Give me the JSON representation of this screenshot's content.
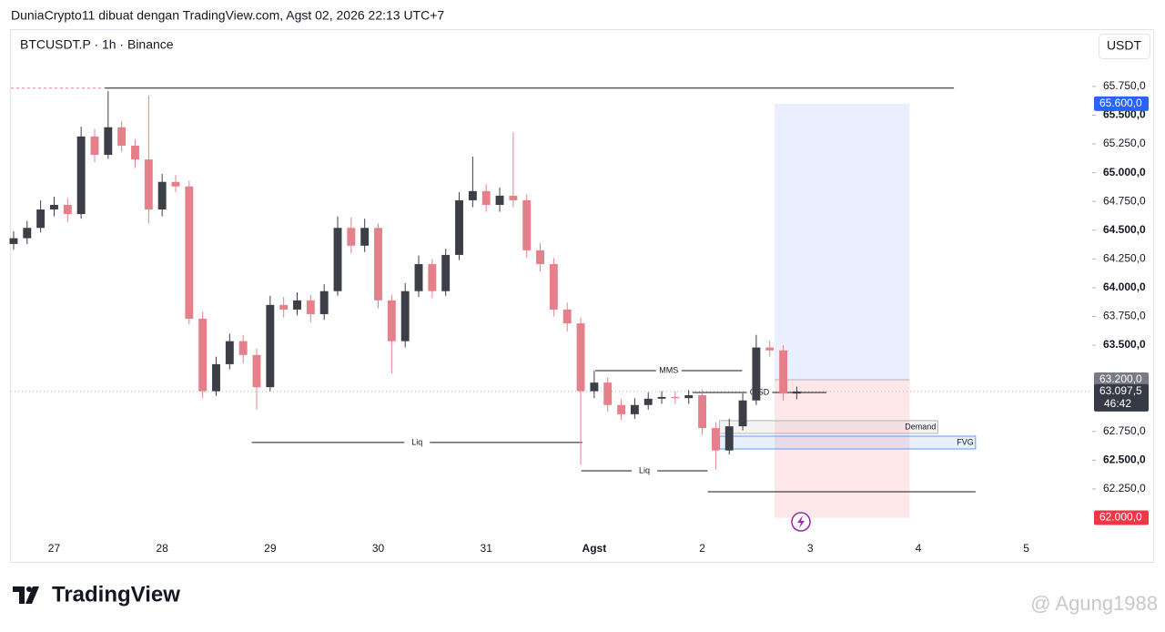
{
  "header": {
    "text": "DuniaCrypto11 dibuat dengan TradingView.com, Agst 02, 2026 22:13 UTC+7"
  },
  "chart_data": {
    "type": "candlestick",
    "title": "BTCUSDT.P · 1h · Binance",
    "currency": "USDT",
    "up_color": "#3c3f47",
    "down_color": "#e5808b",
    "xlim": [
      26.6,
      36.61
    ],
    "ylim": [
      61830,
      66240
    ],
    "xticks": [
      27,
      28,
      29,
      30,
      31,
      {
        "value": 32,
        "label": "Agst"
      },
      {
        "value": 33,
        "label": "2"
      },
      {
        "value": 34,
        "label": "3"
      },
      {
        "value": 35,
        "label": "4"
      },
      {
        "value": 36,
        "label": "5"
      }
    ],
    "yticks": [
      {
        "value": 62250,
        "label": "62.250,0"
      },
      {
        "value": 62500,
        "label": "62.500,0"
      },
      {
        "value": 62750,
        "label": "62.750,0"
      },
      {
        "value": 63500,
        "label": "63.500,0"
      },
      {
        "value": 63750,
        "label": "63.750,0"
      },
      {
        "value": 64000,
        "label": "64.000,0"
      },
      {
        "value": 64250,
        "label": "64.250,0"
      },
      {
        "value": 64500,
        "label": "64.500,0"
      },
      {
        "value": 64750,
        "label": "64.750,0"
      },
      {
        "value": 65000,
        "label": "65.000,0"
      },
      {
        "value": 65250,
        "label": "65.250,0"
      },
      {
        "value": 65500,
        "label": "65.500,0"
      },
      {
        "value": 65750,
        "label": "65.750,0"
      }
    ],
    "x": [
      26.625,
      26.75,
      26.875,
      27,
      27.125,
      27.25,
      27.375,
      27.5,
      27.625,
      27.75,
      27.875,
      28,
      28.125,
      28.25,
      28.375,
      28.5,
      28.625,
      28.75,
      28.875,
      29,
      29.125,
      29.25,
      29.375,
      29.5,
      29.625,
      29.75,
      29.875,
      30,
      30.125,
      30.25,
      30.375,
      30.5,
      30.625,
      30.75,
      30.875,
      31,
      31.125,
      31.25,
      31.375,
      31.5,
      31.625,
      31.75,
      31.875,
      32,
      32.125,
      32.25,
      32.375,
      32.5,
      32.625,
      32.75,
      32.875,
      33,
      33.125,
      33.25,
      33.375,
      33.5,
      33.625,
      33.75,
      33.875
    ],
    "open": [
      64380,
      64430,
      64520,
      64680,
      64720,
      64640,
      65315,
      65155,
      65395,
      65235,
      65115,
      64680,
      64920,
      64880,
      63730,
      63100,
      63335,
      63535,
      63415,
      63135,
      63850,
      63810,
      63890,
      63770,
      63970,
      64520,
      64365,
      64520,
      63890,
      63535,
      63970,
      64205,
      63970,
      64285,
      64760,
      64840,
      64720,
      64800,
      64760,
      64325,
      64205,
      63810,
      63690,
      63100,
      63175,
      62980,
      62900,
      62980,
      63035,
      63050,
      63040,
      63065,
      62780,
      62585,
      62795,
      63020,
      63480,
      63455,
      63080
    ],
    "high": [
      64490,
      64580,
      64760,
      64790,
      64780,
      65400,
      65380,
      65710,
      65450,
      65290,
      65670,
      64990,
      64980,
      64930,
      63790,
      63400,
      63600,
      63590,
      63470,
      63930,
      63920,
      63960,
      63940,
      64030,
      64620,
      64610,
      64600,
      64560,
      63940,
      64040,
      64280,
      64250,
      64340,
      64830,
      65140,
      64900,
      64870,
      65350,
      64810,
      64390,
      64260,
      63870,
      63740,
      63280,
      63220,
      63030,
      63040,
      63090,
      63100,
      63100,
      63110,
      63110,
      62830,
      62860,
      63080,
      63590,
      63540,
      63500,
      63140
    ],
    "low": [
      64330,
      64380,
      64480,
      64620,
      64570,
      64600,
      65090,
      65120,
      65180,
      65040,
      64560,
      64620,
      64830,
      63680,
      63040,
      63060,
      63290,
      63340,
      62940,
      63100,
      63740,
      63760,
      63700,
      63720,
      63930,
      64300,
      64310,
      63820,
      63255,
      63480,
      63920,
      63910,
      63930,
      64240,
      64700,
      64660,
      64660,
      64700,
      64260,
      64140,
      63750,
      63620,
      62460,
      63040,
      62920,
      62850,
      62860,
      62940,
      62990,
      62990,
      62990,
      62720,
      62420,
      62550,
      62760,
      62980,
      63400,
      63020,
      63030
    ],
    "close": [
      64430,
      64520,
      64680,
      64720,
      64640,
      65315,
      65155,
      65395,
      65235,
      65115,
      64680,
      64920,
      64880,
      63730,
      63100,
      63335,
      63535,
      63415,
      63135,
      63850,
      63810,
      63890,
      63770,
      63970,
      64520,
      64365,
      64520,
      63890,
      63535,
      63970,
      64205,
      63970,
      64285,
      64760,
      64840,
      64720,
      64800,
      64760,
      64325,
      64205,
      63810,
      63690,
      63100,
      63175,
      62980,
      62900,
      62980,
      63035,
      63050,
      63040,
      63065,
      62780,
      62585,
      62795,
      63020,
      63480,
      63455,
      63080,
      63097.5
    ],
    "current_price": {
      "value": 63097.5,
      "label": "63.097,5",
      "countdown": "46:42"
    },
    "position": {
      "x": [
        33.67,
        34.92
      ],
      "target": {
        "value": 65600,
        "label": "65.600,0"
      },
      "entry": {
        "value": 63200,
        "label": "63.200,0"
      },
      "stop": {
        "value": 62000,
        "label": "62.000,0"
      }
    },
    "lines": [
      {
        "y": 65735,
        "x": [
          27.47,
          35.33
        ]
      },
      {
        "y": 65735,
        "x": [
          26.6,
          27.47
        ],
        "dashed": true
      },
      {
        "y": 62654,
        "x": [
          28.83,
          31.89
        ],
        "label": "Liq"
      },
      {
        "y": 62408,
        "x": [
          31.88,
          33.05
        ],
        "label": "Liq"
      },
      {
        "y": 62226,
        "x": [
          33.05,
          35.53
        ]
      },
      {
        "y": 63279,
        "x": [
          32.01,
          33.37
        ],
        "label": "MMS"
      },
      {
        "y": 63089,
        "x": [
          32.91,
          34.15
        ],
        "label": "CISD"
      }
    ],
    "zones": [
      {
        "y": [
          62733,
          62844
        ],
        "x": [
          33.16,
          35.18
        ],
        "label": "Demand",
        "color": "#b2b5be"
      },
      {
        "y": [
          62598,
          62709
        ],
        "x": [
          33.16,
          35.53
        ],
        "label": "FVG",
        "color": "#5b9cf6"
      }
    ]
  },
  "footer": {
    "brand": "TradingView",
    "watermark": "@ Agung1988"
  }
}
